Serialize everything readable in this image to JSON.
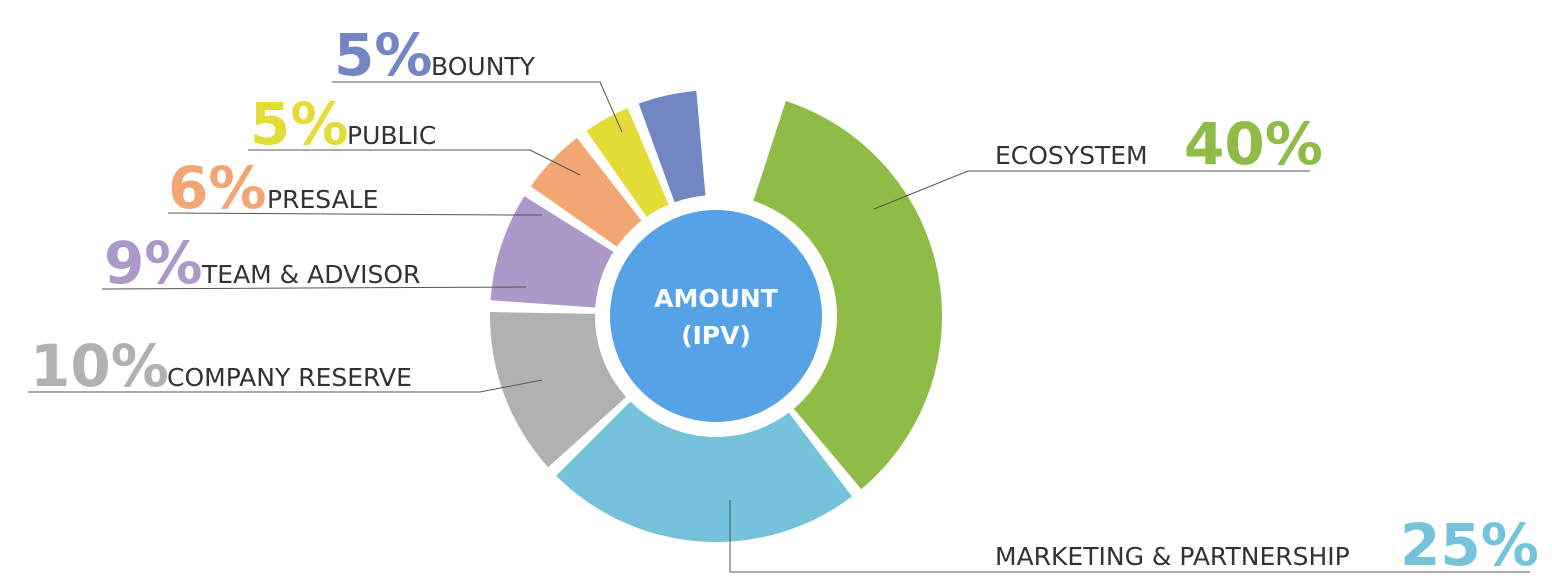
{
  "chart_data": {
    "type": "pie",
    "center_label": [
      "AMOUNT",
      "(IPV)"
    ],
    "slices": [
      {
        "label": "ECOSYSTEM",
        "percent_text": "40%",
        "value": 40,
        "color": "#8fbc47"
      },
      {
        "label": "MARKETING & PARTNERSHIP",
        "percent_text": "25%",
        "value": 25,
        "color": "#74c3da"
      },
      {
        "label": "COMPANY RESERVE",
        "percent_text": "10%",
        "value": 10,
        "color": "#b1b1b1"
      },
      {
        "label": "TEAM & ADVISOR",
        "percent_text": "9%",
        "value": 9,
        "color": "#ac98c9"
      },
      {
        "label": "PRESALE",
        "percent_text": "6%",
        "value": 6,
        "color": "#f1a673"
      },
      {
        "label": "PUBLIC",
        "percent_text": "5%",
        "value": 5,
        "color": "#e4dc37"
      },
      {
        "label": "BOUNTY",
        "percent_text": "5%",
        "value": 5,
        "color": "#7286c2"
      }
    ],
    "center_color": "#55a3e6"
  }
}
